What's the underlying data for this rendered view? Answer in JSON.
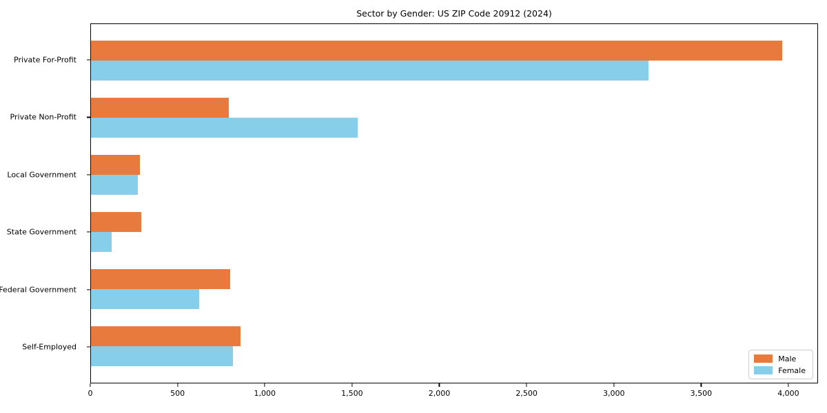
{
  "chart_data": {
    "type": "bar",
    "orientation": "horizontal",
    "title": "Sector by Gender: US ZIP Code 20912 (2024)",
    "categories": [
      "Private For-Profit",
      "Private Non-Profit",
      "Local Government",
      "State Government",
      "Federal Government",
      "Self-Employed"
    ],
    "series": [
      {
        "name": "Male",
        "color": "#e87a3d",
        "values": [
          3970,
          790,
          280,
          290,
          800,
          860
        ]
      },
      {
        "name": "Female",
        "color": "#87ceeb",
        "values": [
          3200,
          1530,
          270,
          120,
          620,
          815
        ]
      }
    ],
    "xlabel": "",
    "ylabel": "",
    "xlim": [
      0,
      4170
    ],
    "xticks": [
      0,
      500,
      1000,
      1500,
      2000,
      2500,
      3000,
      3500,
      4000
    ],
    "xtick_labels": [
      "0",
      "500",
      "1,000",
      "1,500",
      "2,000",
      "2,500",
      "3,000",
      "3,500",
      "4,000"
    ],
    "grid": false,
    "legend": {
      "position": "lower right"
    },
    "colors": {
      "axis": "#000000",
      "background": "#ffffff",
      "legend_border": "#cccccc"
    }
  }
}
